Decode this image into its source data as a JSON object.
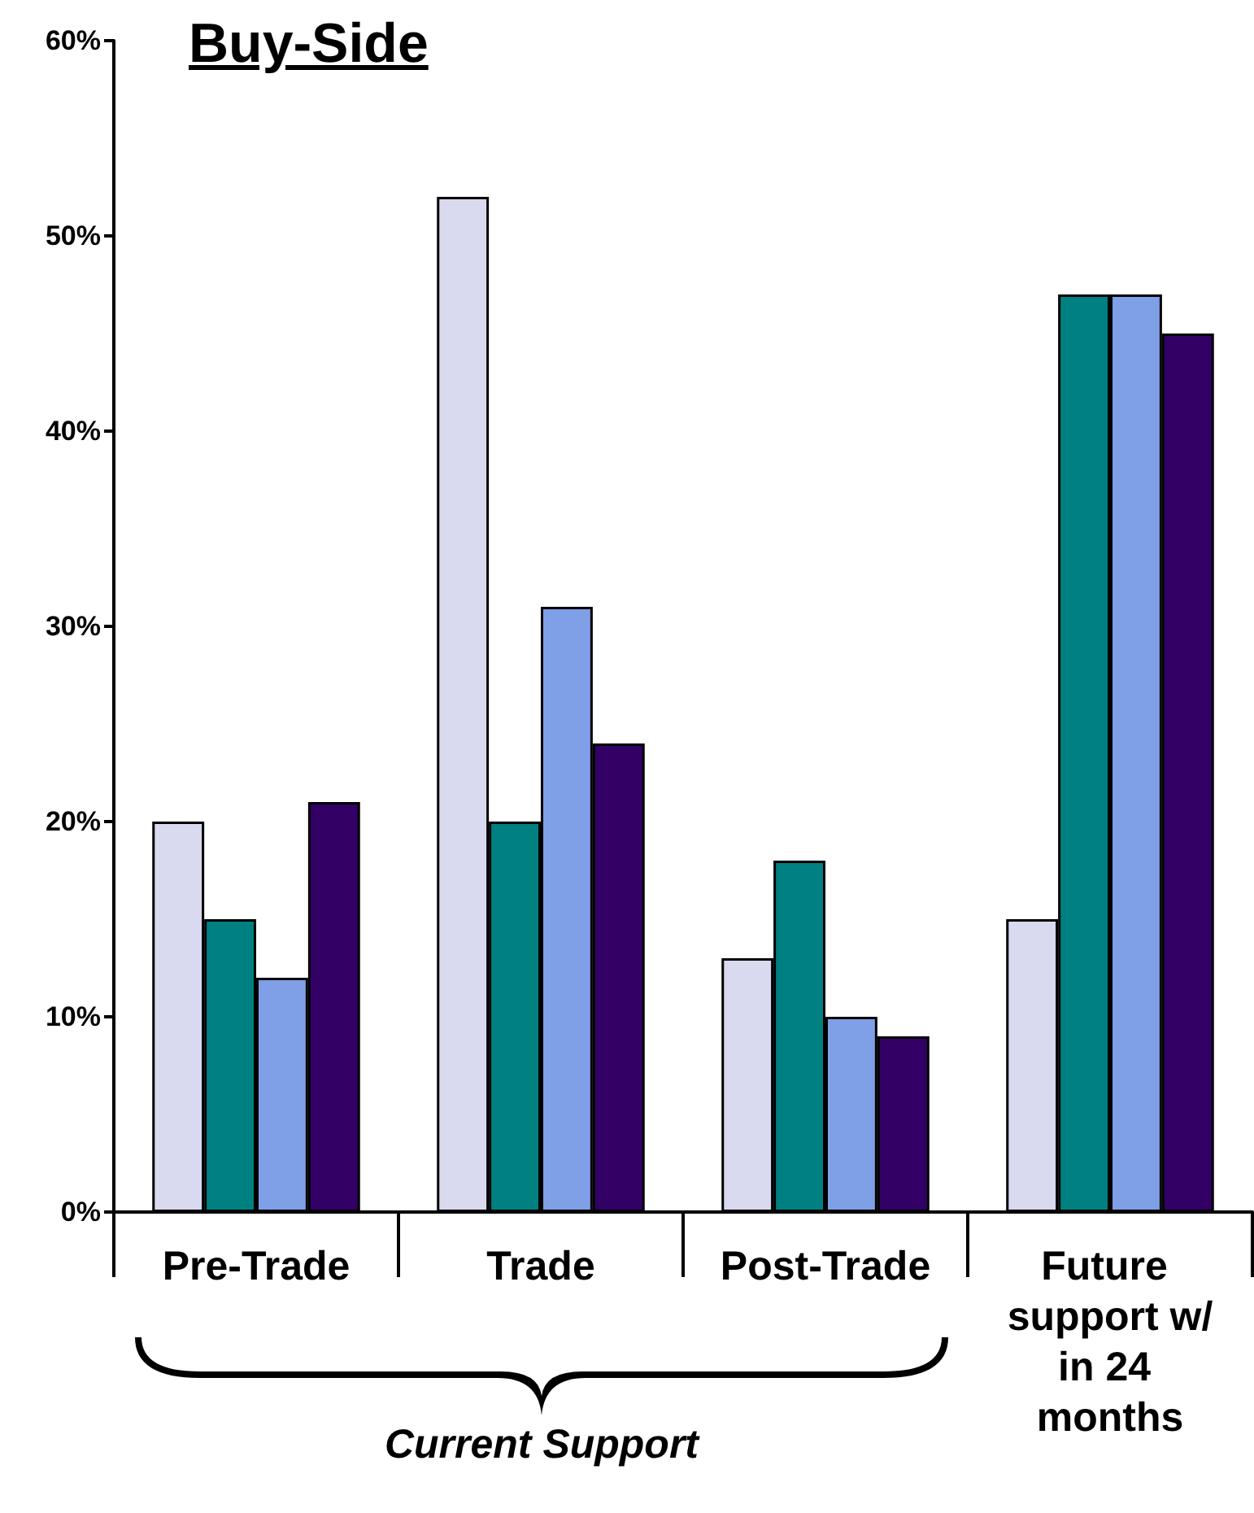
{
  "chart_data": {
    "type": "bar",
    "title": "Buy-Side",
    "categories": [
      "Pre-Trade",
      "Trade",
      "Post-Trade",
      "Future support w/in 24 months"
    ],
    "series": [
      {
        "color": "#d9d9f0",
        "values": [
          20,
          52,
          13,
          15
        ]
      },
      {
        "color": "#008080",
        "values": [
          15,
          20,
          18,
          47
        ]
      },
      {
        "color": "#7f9fe6",
        "values": [
          12,
          31,
          10,
          47
        ]
      },
      {
        "color": "#330066",
        "values": [
          21,
          24,
          9,
          45
        ]
      }
    ],
    "ylim": [
      0,
      60
    ],
    "yticks": [
      {
        "value": 0,
        "label": "0%"
      },
      {
        "value": 10,
        "label": "10%"
      },
      {
        "value": 20,
        "label": "20%"
      },
      {
        "value": 30,
        "label": "30%"
      },
      {
        "value": 40,
        "label": "40%"
      },
      {
        "value": 50,
        "label": "50%"
      },
      {
        "value": 60,
        "label": "60%"
      }
    ],
    "annotations": [
      "Current Support"
    ]
  }
}
